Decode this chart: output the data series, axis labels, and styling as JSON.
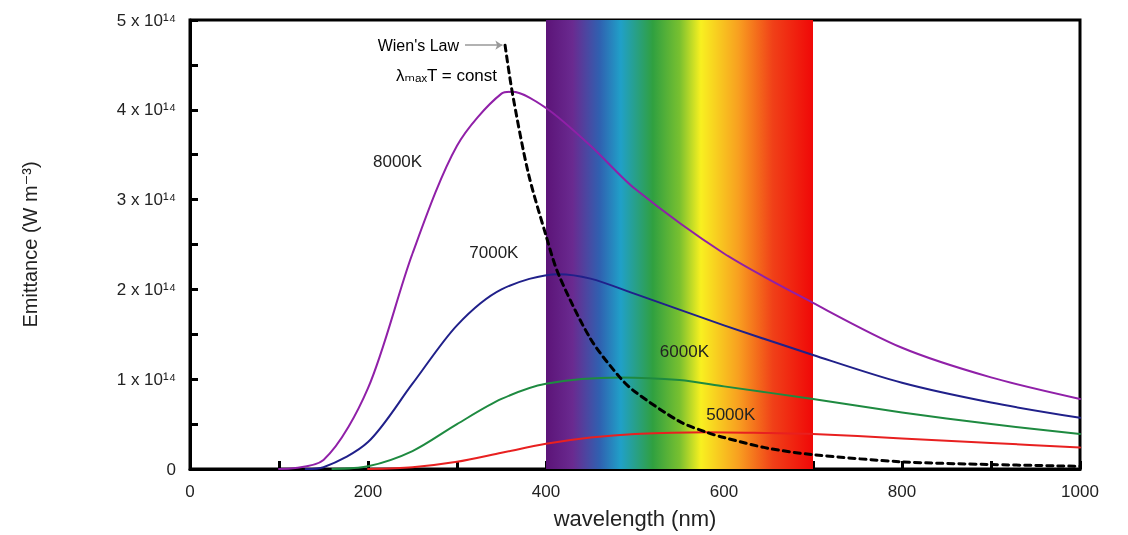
{
  "chart_data": {
    "type": "line",
    "xlabel": "wavelength (nm)",
    "ylabel": "Emittance (W m⁻³)",
    "xlim": [
      0,
      1000
    ],
    "xticks": [
      0,
      {
        "value": 100,
        "label": null
      },
      200,
      {
        "value": 300,
        "label": null
      },
      400,
      {
        "value": 500,
        "label": null
      },
      600,
      {
        "value": 700,
        "label": null
      },
      800,
      {
        "value": 900,
        "label": null
      },
      1000
    ],
    "ylim": [
      0,
      500000000000000.0
    ],
    "yticks": [
      0,
      {
        "value": 50000000000000.0,
        "label": null
      },
      {
        "value": 100000000000000.0,
        "label": "1 x 10¹⁴"
      },
      {
        "value": 150000000000000.0,
        "label": null
      },
      {
        "value": 200000000000000.0,
        "label": "2 x 10¹⁴"
      },
      {
        "value": 250000000000000.0,
        "label": null
      },
      {
        "value": 300000000000000.0,
        "label": "3 x 10¹⁴"
      },
      {
        "value": 350000000000000.0,
        "label": null
      },
      {
        "value": 400000000000000.0,
        "label": "4 x 10¹⁴"
      },
      {
        "value": 450000000000000.0,
        "label": null
      },
      {
        "value": 500000000000000.0,
        "label": "5 x 10¹⁴"
      }
    ],
    "grid": false,
    "marker": "none",
    "bands": [
      {
        "axis": "x",
        "from": 400,
        "to": 700
      }
    ],
    "annotations": [
      {
        "text": "Wien's Law",
        "x": 354,
        "y": 472000000000000.0
      },
      "λₘₐₓT = const"
    ],
    "series": [
      {
        "name": "8000K",
        "color": "#9020a8",
        "x": [
          100,
          150,
          200,
          250,
          300,
          350,
          362,
          400,
          450,
          500,
          600,
          700,
          800,
          900,
          1000
        ],
        "values": [
          0,
          10000000000000.0,
          90000000000000.0,
          240000000000000.0,
          360000000000000.0,
          418000000000000.0,
          420000000000000.0,
          402000000000000.0,
          360000000000000.0,
          312000000000000.0,
          240000000000000.0,
          185000000000000.0,
          135000000000000.0,
          102000000000000.0,
          78000000000000.0
        ]
      },
      {
        "name": "7000K",
        "color": "#20208a",
        "x": [
          130,
          150,
          200,
          250,
          300,
          350,
          414,
          450,
          500,
          600,
          700,
          800,
          900,
          1000
        ],
        "values": [
          0,
          2000000000000.0,
          30000000000000.0,
          95000000000000.0,
          160000000000000.0,
          200000000000000.0,
          217000000000000.0,
          212000000000000.0,
          195000000000000.0,
          160000000000000.0,
          127000000000000.0,
          96000000000000.0,
          74000000000000.0,
          57000000000000.0
        ]
      },
      {
        "name": "6000K",
        "color": "#1e8a40",
        "x": [
          160,
          200,
          250,
          300,
          350,
          400,
          483,
          550,
          600,
          700,
          800,
          900,
          1000
        ],
        "values": [
          0,
          3000000000000.0,
          20000000000000.0,
          50000000000000.0,
          78000000000000.0,
          95000000000000.0,
          102000000000000.0,
          99000000000000.0,
          92000000000000.0,
          78000000000000.0,
          63000000000000.0,
          50000000000000.0,
          39000000000000.0
        ]
      },
      {
        "name": "5000K",
        "color": "#e82020",
        "x": [
          200,
          250,
          300,
          350,
          400,
          450,
          500,
          580,
          650,
          700,
          800,
          900,
          1000
        ],
        "values": [
          0,
          2000000000000.0,
          8000000000000.0,
          18000000000000.0,
          28000000000000.0,
          35000000000000.0,
          39000000000000.0,
          41000000000000.0,
          40000000000000.0,
          39000000000000.0,
          34000000000000.0,
          29000000000000.0,
          24000000000000.0
        ]
      },
      {
        "color": "#000000",
        "line_style": "dashed",
        "x": [
          354,
          362,
          380,
          400,
          414,
          450,
          483,
          500,
          550,
          580,
          600,
          650,
          700,
          800,
          900,
          1000
        ],
        "values": [
          472000000000000.0,
          420000000000000.0,
          330000000000000.0,
          260000000000000.0,
          217000000000000.0,
          145000000000000.0,
          102000000000000.0,
          86000000000000.0,
          53000000000000.0,
          41000000000000.0,
          35000000000000.0,
          23000000000000.0,
          16000000000000.0,
          8000000000000.0,
          5000000000000.0,
          3000000000000.0
        ]
      }
    ]
  }
}
